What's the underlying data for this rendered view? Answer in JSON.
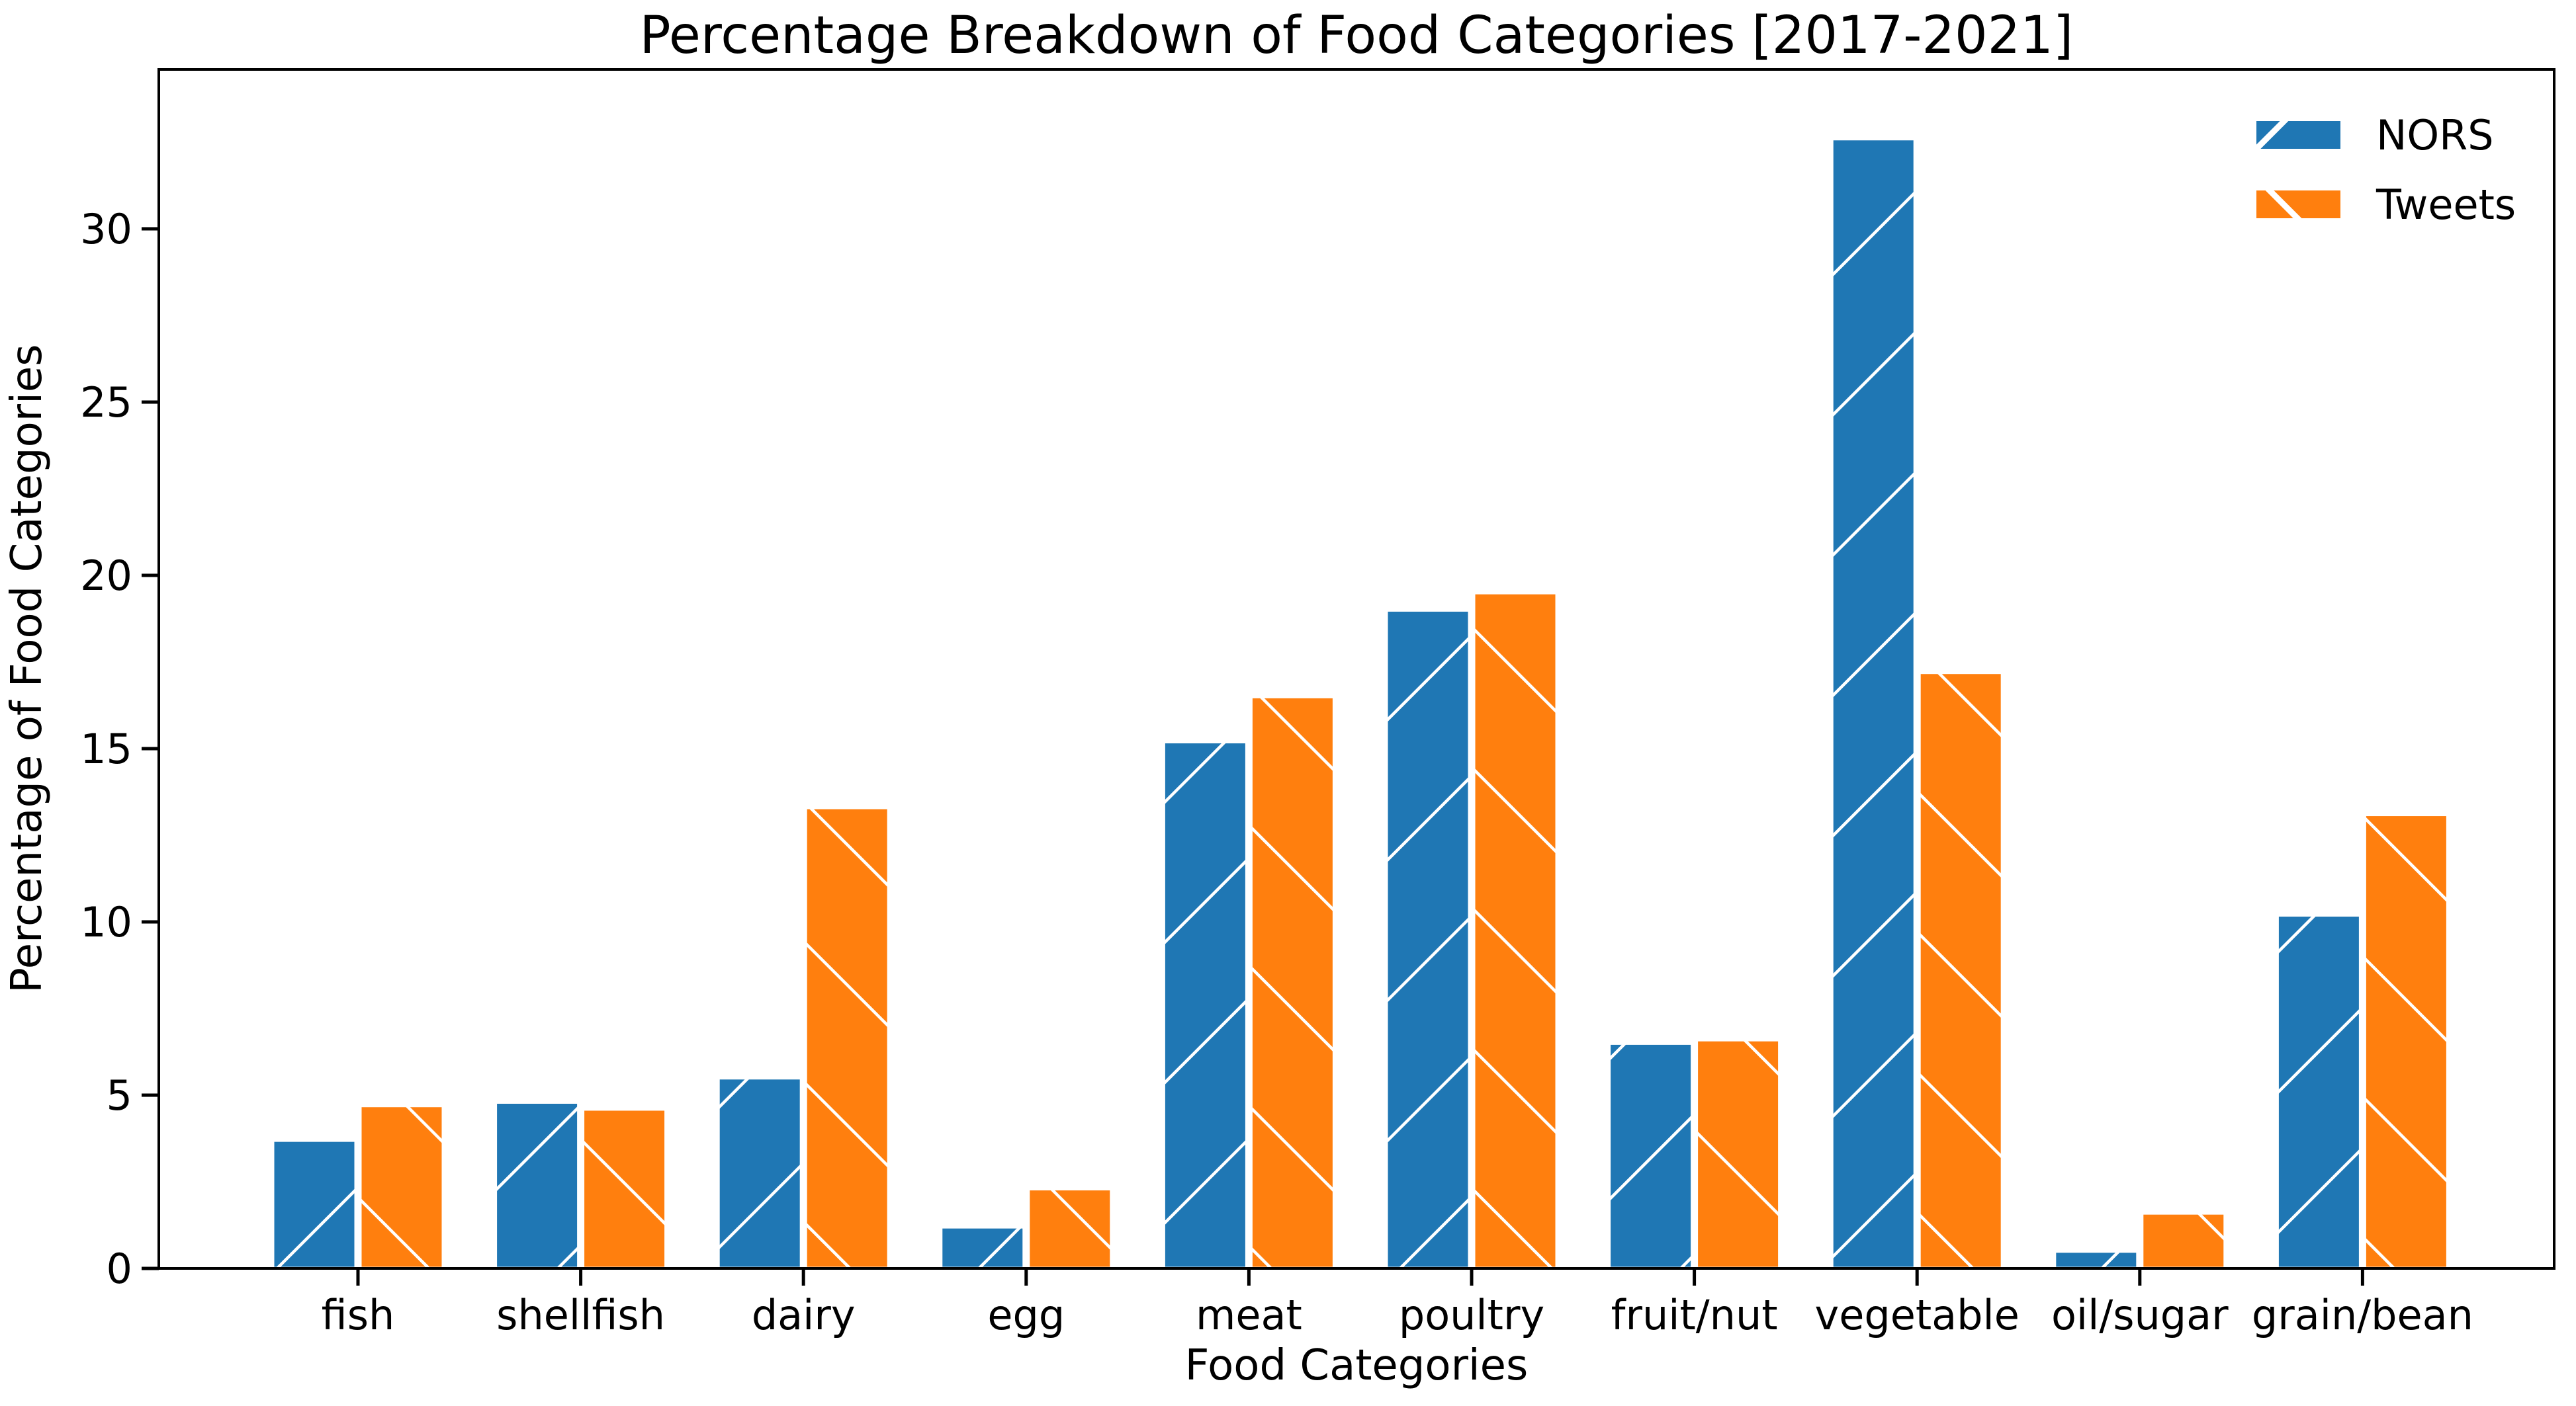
{
  "title": "Percentage Breakdown of Food Categories [2017-2021]",
  "chart_data": {
    "type": "bar",
    "title": "Percentage Breakdown of Food Categories [2017-2021]",
    "xlabel": "Food Categories",
    "ylabel": "Percentage of Food Categories",
    "categories": [
      "fish",
      "shellfish",
      "dairy",
      "egg",
      "meat",
      "poultry",
      "fruit/nut",
      "vegetable",
      "oil/sugar",
      "grain/bean"
    ],
    "series": [
      {
        "name": "NORS",
        "color": "#1f77b4",
        "hatch": "/",
        "values": [
          3.7,
          4.8,
          5.5,
          1.2,
          15.2,
          19.0,
          6.5,
          32.6,
          0.5,
          10.2
        ]
      },
      {
        "name": "Tweets",
        "color": "#ff7f0e",
        "hatch": "\\",
        "values": [
          4.7,
          4.6,
          13.3,
          2.3,
          16.5,
          19.5,
          6.6,
          17.2,
          1.6,
          13.1
        ]
      }
    ],
    "yticks": [
      0,
      5,
      10,
      15,
      20,
      25,
      30
    ],
    "ytick_labels": [
      "0",
      "5",
      "10",
      "15",
      "20",
      "25",
      "30"
    ],
    "ylim": [
      0,
      34.6
    ],
    "grid": false,
    "legend_position": "upper right",
    "hatch_color": "#ffffff",
    "axis_color": "#000000",
    "background_color": "#ffffff"
  },
  "legend": {
    "items": [
      {
        "label": "NORS"
      },
      {
        "label": "Tweets"
      }
    ]
  }
}
